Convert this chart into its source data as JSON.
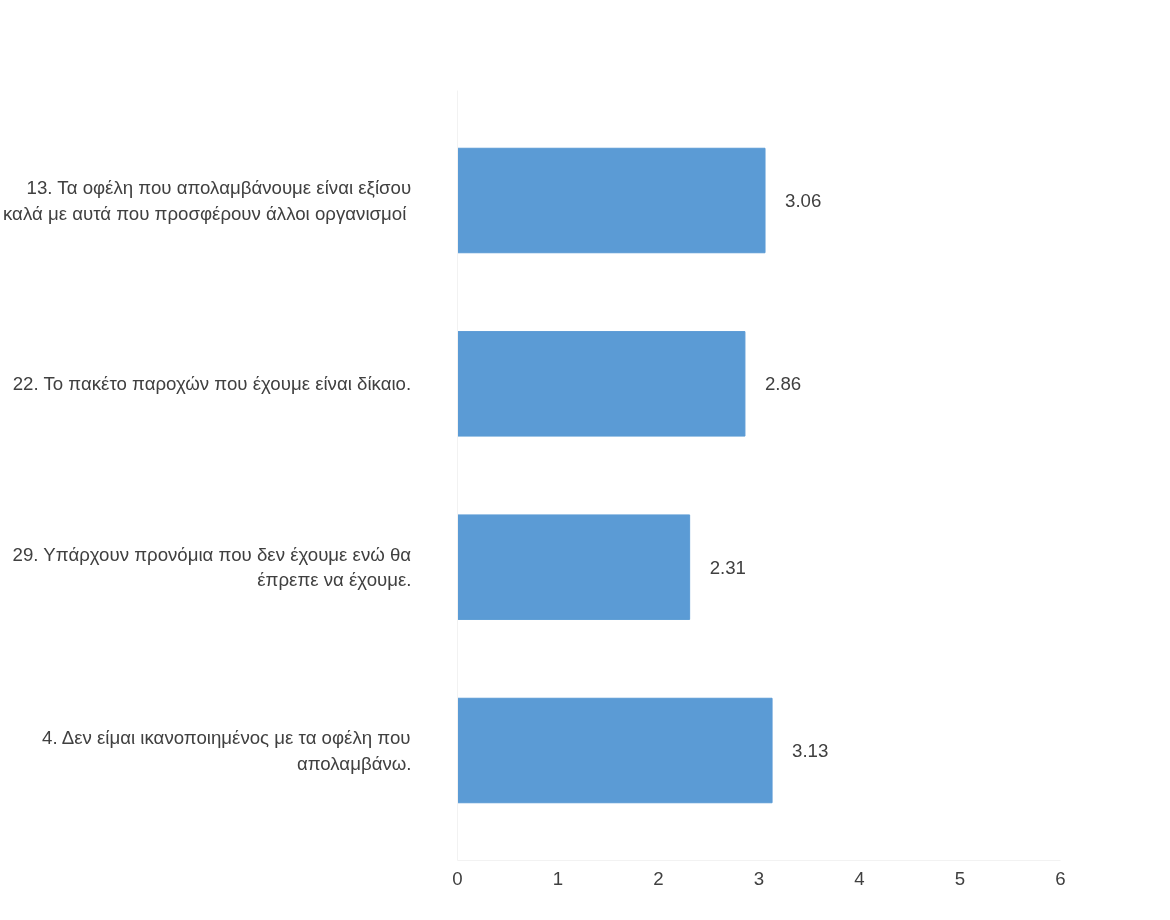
{
  "chart_data": {
    "type": "bar",
    "orientation": "horizontal",
    "categories": [
      "13. Τα οφέλη που απολαμβάνουμε είναι εξίσου καλά με  αυτά που προσφέρουν άλλοι οργανισμοί",
      "22. Το πακέτο παροχών που έχουμε είναι δίκαιο.",
      "29. Υπάρχουν προνόμια που δεν έχουμε ενώ θα έπρεπε να έχουμε.",
      "4. Δεν είμαι ικανοποιημένος με τα οφέλη που απολαμβάνω."
    ],
    "values": [
      3.06,
      2.86,
      2.31,
      3.13
    ],
    "color": "#5b9bd5",
    "xlim": [
      0,
      6
    ],
    "xticks": [
      0,
      1,
      2,
      3,
      4,
      5,
      6
    ],
    "data_labels": true,
    "grid": false
  }
}
